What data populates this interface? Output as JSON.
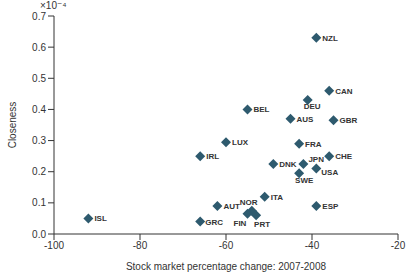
{
  "chart_data": {
    "type": "scatter",
    "x_label": "Stock market percentage change: 2007-2008",
    "y_label": "Closeness",
    "annotations": [
      "×10⁻⁴"
    ],
    "marker": "diamond",
    "color": "#2E5A6E",
    "grid": false,
    "xlim": [
      -100,
      -20
    ],
    "xticks": [
      -100,
      -80,
      -60,
      -40,
      -20
    ],
    "ylim": [
      0,
      0.7
    ],
    "yticks": [
      {
        "value": 0,
        "label": "0.0"
      },
      0.1,
      0.2,
      0.3,
      0.4,
      0.5,
      0.6,
      0.7
    ],
    "point_labels": [
      "NZL",
      "CAN",
      "DEU",
      "AUS",
      "BEL",
      "GBR",
      "FRA",
      "LUX",
      "IRL",
      "CHE",
      "JPN",
      "DNK",
      "USA",
      "SWE",
      "ITA",
      "AUT",
      "NOR",
      "FIN",
      "PRT",
      "ESP",
      "GRC",
      "ISL"
    ],
    "x": [
      -39,
      -36,
      -41,
      -45,
      -55,
      -35,
      -43,
      -60,
      -66,
      -36,
      -42,
      -49,
      -39,
      -43,
      -51,
      -62,
      -54,
      -55,
      -53,
      -39,
      -66,
      -92
    ],
    "values": [
      0.63,
      0.46,
      0.43,
      0.37,
      0.4,
      0.365,
      0.29,
      0.295,
      0.25,
      0.25,
      0.225,
      0.225,
      0.21,
      0.195,
      0.12,
      0.09,
      0.075,
      0.065,
      0.06,
      0.09,
      0.04,
      0.05
    ]
  }
}
